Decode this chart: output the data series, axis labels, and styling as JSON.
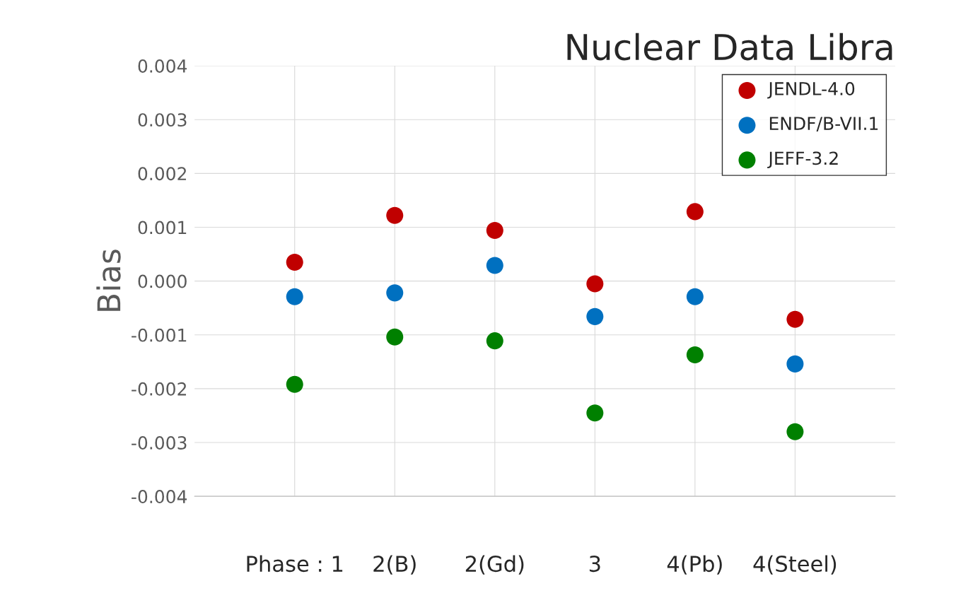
{
  "chart_data": {
    "type": "scatter",
    "title": "Nuclear Data Libra",
    "ylabel": "Bias",
    "categories": [
      "Phase : 1",
      "2(B)",
      "2(Gd)",
      "3",
      "4(Pb)",
      "4(Steel)"
    ],
    "series": [
      {
        "name": "JENDL-4.0",
        "color": "#c00000",
        "values": [
          0.00035,
          0.00122,
          0.00094,
          -5e-05,
          0.00129,
          -0.00071
        ]
      },
      {
        "name": "ENDF/B-VII.1",
        "color": "#0070c0",
        "values": [
          -0.00029,
          -0.00022,
          0.00029,
          -0.00066,
          -0.00029,
          -0.00154
        ]
      },
      {
        "name": "JEFF-3.2",
        "color": "#008000",
        "values": [
          -0.00192,
          -0.00104,
          -0.00111,
          -0.00245,
          -0.00137,
          -0.0028
        ]
      }
    ],
    "ylim": [
      -0.004,
      0.004
    ],
    "yticks": [
      {
        "value": -0.004,
        "label": "-0.004"
      },
      {
        "value": -0.003,
        "label": "-0.003"
      },
      {
        "value": -0.002,
        "label": "-0.002"
      },
      {
        "value": -0.001,
        "label": "-0.001"
      },
      {
        "value": 0,
        "label": "0.000"
      },
      {
        "value": 0.001,
        "label": "0.001"
      },
      {
        "value": 0.002,
        "label": "0.002"
      },
      {
        "value": 0.003,
        "label": "0.003"
      },
      {
        "value": 0.004,
        "label": "0.004"
      }
    ],
    "grid": true,
    "legend": "top right",
    "marker": "circle"
  }
}
